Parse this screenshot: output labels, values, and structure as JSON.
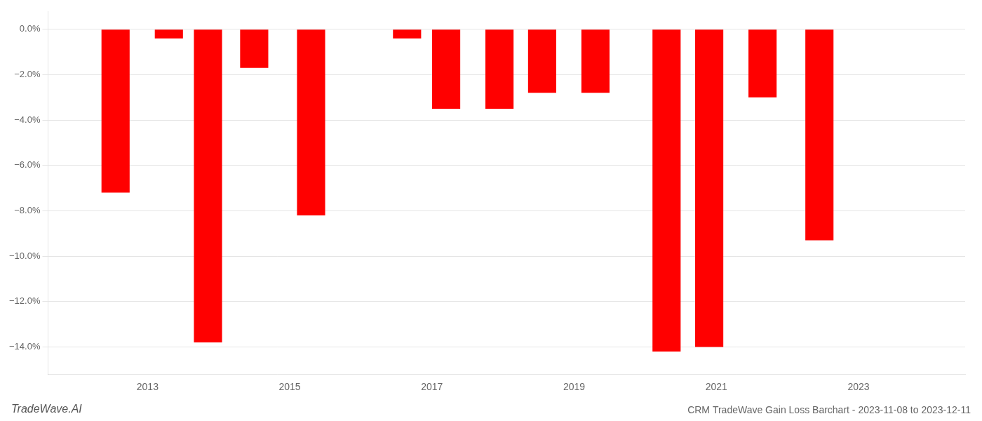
{
  "chart_data": {
    "type": "bar",
    "title": "CRM TradeWave Gain Loss Barchart - 2023-11-08 to 2023-12-11",
    "annotations": [
      "TradeWave.AI"
    ],
    "x": [
      2012.55,
      2013.3,
      2013.85,
      2014.5,
      2015.3,
      2016.65,
      2017.2,
      2017.95,
      2018.55,
      2019.3,
      2020.3,
      2020.9,
      2021.65,
      2022.45
    ],
    "values": [
      -7.2,
      -0.4,
      -13.8,
      -1.7,
      -8.2,
      -0.4,
      -3.5,
      -3.5,
      -2.8,
      -2.8,
      -14.2,
      -14.0,
      -3.0,
      -9.3
    ],
    "color": "#ff0000",
    "xlim": [
      2011.6,
      2024.5
    ],
    "xticks": [
      2013,
      2015,
      2017,
      2019,
      2021,
      2023
    ],
    "ylim": [
      -15.2,
      0.8
    ],
    "yticks": [
      {
        "value": 0.0,
        "label": "0.0%"
      },
      {
        "value": -2.0,
        "label": "−2.0%"
      },
      {
        "value": -4.0,
        "label": "−4.0%"
      },
      {
        "value": -6.0,
        "label": "−6.0%"
      },
      {
        "value": -8.0,
        "label": "−8.0%"
      },
      {
        "value": -10.0,
        "label": "−10.0%"
      },
      {
        "value": -12.0,
        "label": "−12.0%"
      },
      {
        "value": -14.0,
        "label": "−14.0%"
      }
    ],
    "grid": true
  }
}
